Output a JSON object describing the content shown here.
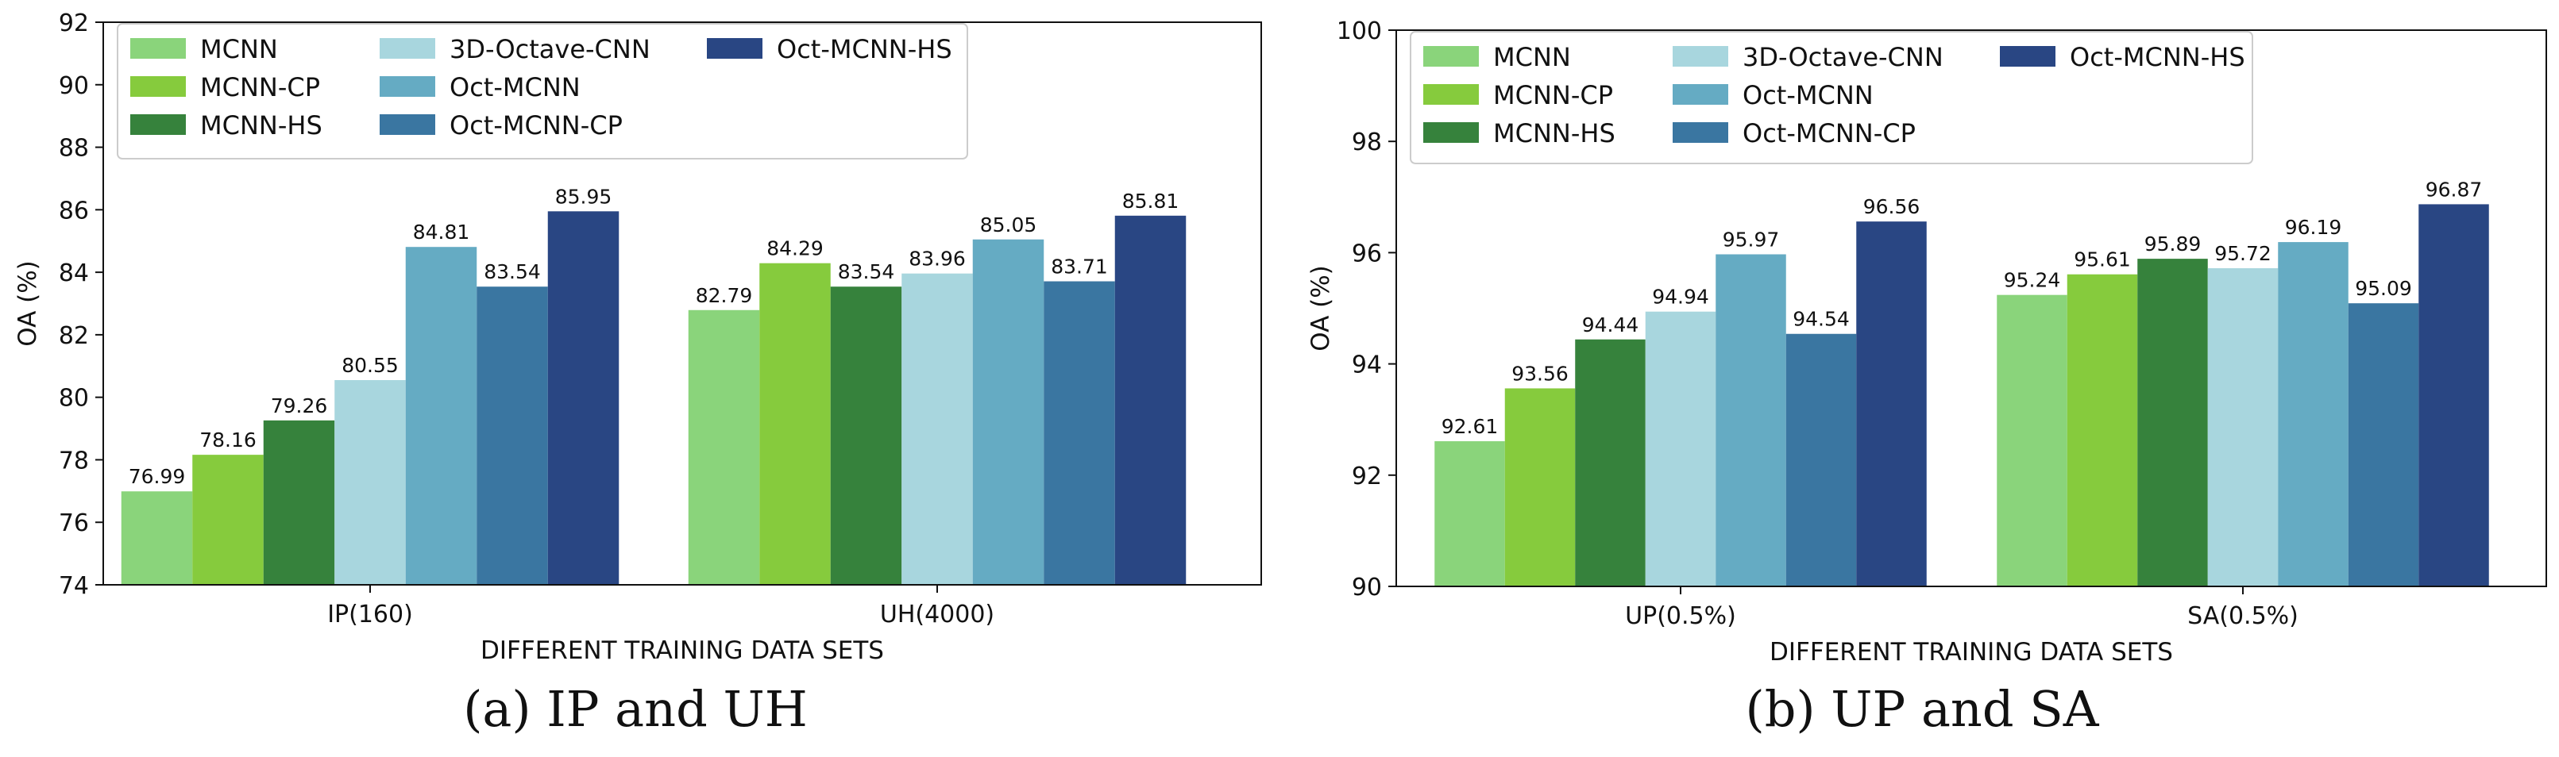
{
  "chart_data": [
    {
      "type": "bar",
      "caption": "(a)  IP and UH",
      "xlabel": "DIFFERENT TRAINING DATA SETS",
      "ylabel": "OA (%)",
      "ylim": [
        74,
        92
      ],
      "yticks": [
        74,
        76,
        78,
        80,
        82,
        84,
        86,
        88,
        90,
        92
      ],
      "legend_position": "top-left",
      "categories": [
        "IP(160)",
        "UH(4000)"
      ],
      "series": [
        {
          "name": "MCNN",
          "color": "#8ad47b",
          "values": [
            76.99,
            82.79
          ]
        },
        {
          "name": "MCNN-CP",
          "color": "#86cb3d",
          "values": [
            78.16,
            84.29
          ]
        },
        {
          "name": "MCNN-HS",
          "color": "#36823c",
          "values": [
            79.26,
            83.54
          ]
        },
        {
          "name": "3D-Octave-CNN",
          "color": "#a8d6de",
          "values": [
            80.55,
            83.96
          ]
        },
        {
          "name": "Oct-MCNN",
          "color": "#65abc3",
          "values": [
            84.81,
            85.05
          ]
        },
        {
          "name": "Oct-MCNN-CP",
          "color": "#3a76a1",
          "values": [
            83.54,
            83.71
          ]
        },
        {
          "name": "Oct-MCNN-HS",
          "color": "#294683",
          "values": [
            85.95,
            85.81
          ]
        }
      ]
    },
    {
      "type": "bar",
      "caption": "(b)  UP and SA",
      "xlabel": "DIFFERENT TRAINING DATA SETS",
      "ylabel": "OA (%)",
      "ylim": [
        90,
        100
      ],
      "yticks": [
        90,
        92,
        94,
        96,
        98,
        100
      ],
      "legend_position": "top-left",
      "categories": [
        "UP(0.5%)",
        "SA(0.5%)"
      ],
      "series": [
        {
          "name": "MCNN",
          "color": "#8ad47b",
          "values": [
            92.61,
            95.24
          ]
        },
        {
          "name": "MCNN-CP",
          "color": "#86cb3d",
          "values": [
            93.56,
            95.61
          ]
        },
        {
          "name": "MCNN-HS",
          "color": "#36823c",
          "values": [
            94.44,
            95.89
          ]
        },
        {
          "name": "3D-Octave-CNN",
          "color": "#a8d6de",
          "values": [
            94.94,
            95.72
          ]
        },
        {
          "name": "Oct-MCNN",
          "color": "#65abc3",
          "values": [
            95.97,
            96.19
          ]
        },
        {
          "name": "Oct-MCNN-CP",
          "color": "#3a76a1",
          "values": [
            94.54,
            95.09
          ]
        },
        {
          "name": "Oct-MCNN-HS",
          "color": "#294683",
          "values": [
            96.56,
            96.87
          ]
        }
      ]
    }
  ]
}
